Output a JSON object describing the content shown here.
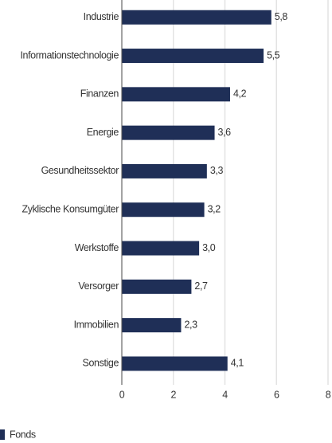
{
  "chart_data": {
    "type": "hbar",
    "categories": [
      "Industrie",
      "Informationstechnologie",
      "Finanzen",
      "Energie",
      "Gesundheitssektor",
      "Zyklische Konsumgüter",
      "Werkstoffe",
      "Versorger",
      "Immobilien",
      "Sonstige"
    ],
    "series": [
      {
        "name": "Fonds",
        "color": "#1f2f57",
        "values": [
          5.8,
          5.5,
          4.2,
          3.6,
          3.3,
          3.2,
          3.0,
          2.7,
          2.3,
          4.1
        ],
        "value_labels": [
          "5,8",
          "5,5",
          "4,2",
          "3,6",
          "3,3",
          "3,2",
          "3,0",
          "2,7",
          "2,3",
          "4,1"
        ]
      }
    ],
    "xlim": [
      0,
      8
    ],
    "xticks": [
      0,
      2,
      4,
      6,
      8
    ],
    "grid": true,
    "legend": "bottom-left"
  }
}
